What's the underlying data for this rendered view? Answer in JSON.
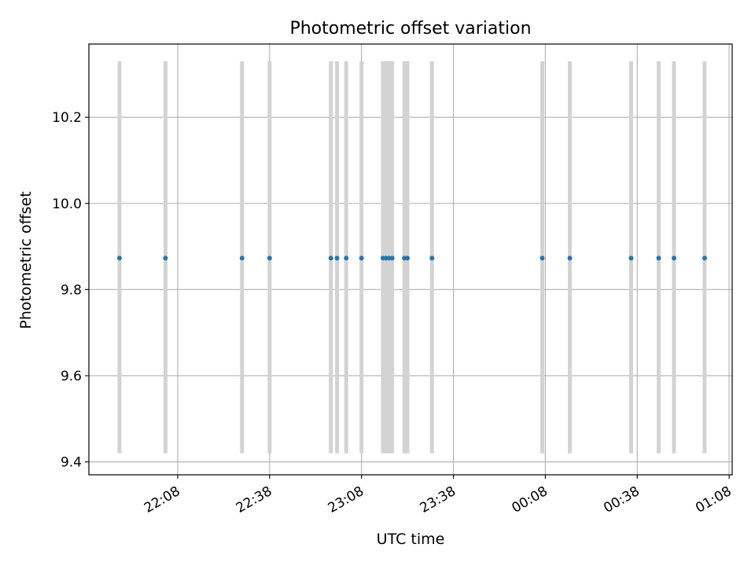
{
  "chart_data": {
    "type": "scatter",
    "title": "Photometric offset variation",
    "xlabel": "UTC time",
    "ylabel": "Photometric offset",
    "grid": true,
    "xlim": [
      "21:39",
      "01:09"
    ],
    "ylim": [
      9.37,
      10.37
    ],
    "x_ticks": [
      "22:08",
      "22:38",
      "23:08",
      "23:38",
      "00:08",
      "00:38",
      "01:08"
    ],
    "y_ticks": [
      "9.4",
      "9.6",
      "9.8",
      "10.0",
      "10.2"
    ],
    "points": [
      {
        "time": "21:49",
        "offset": 9.873
      },
      {
        "time": "22:04",
        "offset": 9.873
      },
      {
        "time": "22:29",
        "offset": 9.873
      },
      {
        "time": "22:38",
        "offset": 9.873
      },
      {
        "time": "22:58",
        "offset": 9.873
      },
      {
        "time": "23:00",
        "offset": 9.873
      },
      {
        "time": "23:03",
        "offset": 9.873
      },
      {
        "time": "23:08",
        "offset": 9.873
      },
      {
        "time": "23:15",
        "offset": 9.873
      },
      {
        "time": "23:16",
        "offset": 9.873
      },
      {
        "time": "23:17",
        "offset": 9.873
      },
      {
        "time": "23:18",
        "offset": 9.873
      },
      {
        "time": "23:22",
        "offset": 9.873
      },
      {
        "time": "23:23",
        "offset": 9.873
      },
      {
        "time": "23:31",
        "offset": 9.873
      },
      {
        "time": "00:07",
        "offset": 9.873
      },
      {
        "time": "00:16",
        "offset": 9.873
      },
      {
        "time": "00:36",
        "offset": 9.873
      },
      {
        "time": "00:45",
        "offset": 9.873
      },
      {
        "time": "00:50",
        "offset": 9.873
      },
      {
        "time": "01:00",
        "offset": 9.873
      }
    ],
    "error_bar": {
      "low": 9.42,
      "high": 10.33
    },
    "colors": {
      "points": "#1f77b4",
      "error_bars": "#d3d3d3",
      "grid": "#b0b0b0"
    }
  }
}
